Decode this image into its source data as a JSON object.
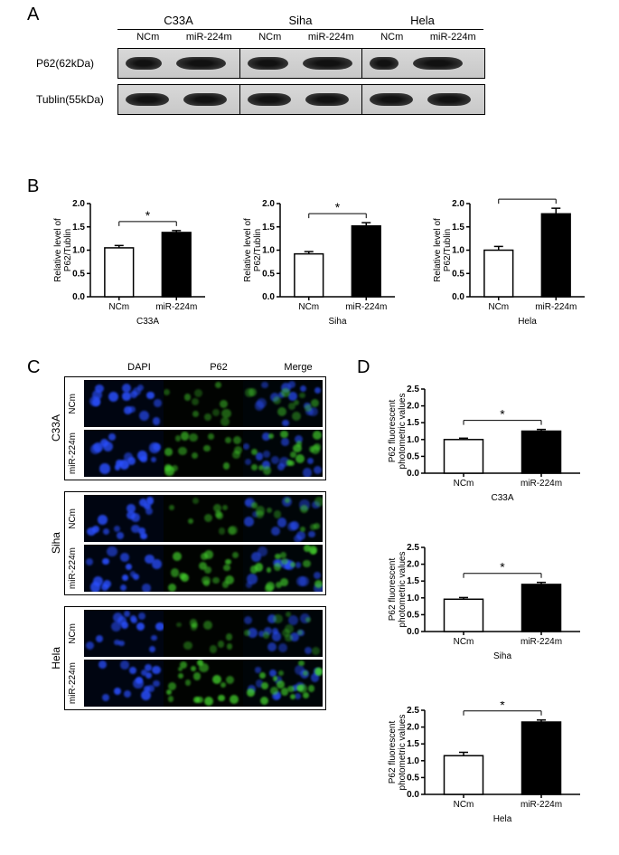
{
  "panelA": {
    "label": "A",
    "cell_lines": [
      "C33A",
      "Siha",
      "Hela"
    ],
    "conditions": [
      "NCm",
      "miR-224m"
    ],
    "rows": [
      {
        "label": "P62(62kDa)",
        "band_widths": [
          [
            40,
            55
          ],
          [
            45,
            55
          ],
          [
            32,
            55
          ]
        ]
      },
      {
        "label": "Tublin(55kDa)",
        "band_widths": [
          [
            48,
            48
          ],
          [
            48,
            48
          ],
          [
            48,
            48
          ]
        ]
      }
    ]
  },
  "panelB": {
    "label": "B",
    "ylabel": "Relative level of\nP62/Tublin",
    "ylim": [
      0,
      2.0
    ],
    "ytick_step": 0.5,
    "sig_marker": "*",
    "charts": [
      {
        "cell_line": "C33A",
        "values": [
          1.05,
          1.38
        ],
        "errors": [
          0.05,
          0.04
        ]
      },
      {
        "cell_line": "Siha",
        "values": [
          0.92,
          1.52
        ],
        "errors": [
          0.05,
          0.07
        ]
      },
      {
        "cell_line": "Hela",
        "values": [
          1.0,
          1.78
        ],
        "errors": [
          0.08,
          0.12
        ]
      }
    ],
    "categories": [
      "NCm",
      "miR-224m"
    ],
    "colors": {
      "ncm": "#ffffff",
      "mir": "#000000",
      "axis": "#000000"
    },
    "bar_width": 0.5,
    "font_size_axis": 10,
    "font_size_label": 10
  },
  "panelC": {
    "label": "C",
    "headers": [
      "DAPI",
      "P62",
      "Merge"
    ],
    "cell_lines": [
      "C33A",
      "Siha",
      "Hela"
    ],
    "conditions": [
      "NCm",
      "miR-224m"
    ],
    "dapi_color": "#2a4fff",
    "p62_color": "#46d82e",
    "p62_intensity": {
      "C33A": {
        "NCm": 0.25,
        "miR-224m": 0.55
      },
      "Siha": {
        "NCm": 0.3,
        "miR-224m": 0.6
      },
      "Hela": {
        "NCm": 0.2,
        "miR-224m": 0.7
      }
    }
  },
  "panelD": {
    "label": "D",
    "ylabel": "P62 fluorescent\nphotometric values",
    "ylim": [
      0,
      2.5
    ],
    "ytick_step": 0.5,
    "sig_marker": "*",
    "charts": [
      {
        "cell_line": "C33A",
        "values": [
          1.0,
          1.25
        ],
        "errors": [
          0.04,
          0.05
        ]
      },
      {
        "cell_line": "Siha",
        "values": [
          0.96,
          1.4
        ],
        "errors": [
          0.05,
          0.06
        ]
      },
      {
        "cell_line": "Hela",
        "values": [
          1.15,
          2.15
        ],
        "errors": [
          0.1,
          0.06
        ]
      }
    ],
    "categories": [
      "NCm",
      "miR-224m"
    ],
    "colors": {
      "ncm": "#ffffff",
      "mir": "#000000",
      "axis": "#000000"
    },
    "bar_width": 0.5,
    "font_size_axis": 10
  }
}
